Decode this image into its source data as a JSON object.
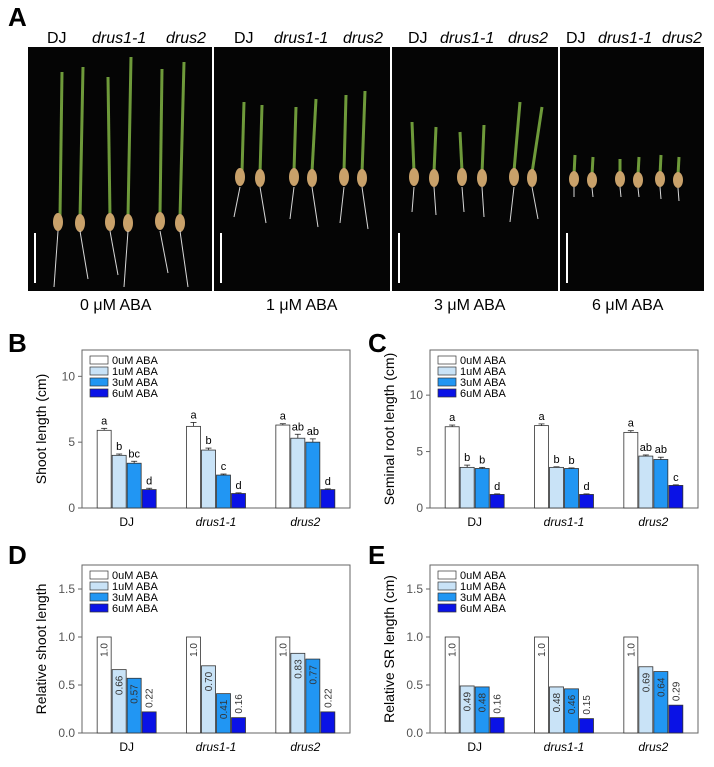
{
  "panels": {
    "a": "A",
    "b": "B",
    "c": "C",
    "d": "D",
    "e": "E"
  },
  "photo": {
    "groups": [
      {
        "genotypes": [
          "DJ",
          "drus1-1",
          "drus2"
        ],
        "treatment": "0 μM ABA"
      },
      {
        "genotypes": [
          "DJ",
          "drus1-1",
          "drus2"
        ],
        "treatment": "1 μM ABA"
      },
      {
        "genotypes": [
          "DJ",
          "drus1-1",
          "drus2"
        ],
        "treatment": "3 μM ABA"
      },
      {
        "genotypes": [
          "DJ",
          "drus1-1",
          "drus2"
        ],
        "treatment": "6 μM ABA"
      }
    ],
    "colors": {
      "background": "#050505",
      "leaf": "#6e9a3a",
      "seed": "#c9a16a",
      "root": "#d8d8d8",
      "scalebar": "#ffffff"
    }
  },
  "colors": {
    "c0": "#ffffff",
    "c1": "#c9e3f7",
    "c2": "#2196f3",
    "c3": "#0a12e6",
    "stroke": "#333333"
  },
  "chart_data": [
    {
      "id": "B",
      "type": "bar",
      "categories": [
        "DJ",
        "drus1-1",
        "drus2"
      ],
      "ylabel": "Shoot length (cm)",
      "ylim": [
        0,
        12
      ],
      "yticks": [
        0,
        5,
        10
      ],
      "grid": false,
      "legend": [
        "0uM ABA",
        "1uM ABA",
        "3uM ABA",
        "6uM ABA"
      ],
      "series": [
        {
          "name": "0uM ABA",
          "values": [
            5.9,
            6.2,
            6.3
          ],
          "err": [
            0.15,
            0.3,
            0.1
          ],
          "letters": [
            "a",
            "a",
            "a"
          ]
        },
        {
          "name": "1uM ABA",
          "values": [
            4.0,
            4.4,
            5.3
          ],
          "err": [
            0.1,
            0.15,
            0.3
          ],
          "letters": [
            "b",
            "b",
            "ab"
          ]
        },
        {
          "name": "3uM ABA",
          "values": [
            3.4,
            2.5,
            5.0
          ],
          "err": [
            0.15,
            0.08,
            0.25
          ],
          "letters": [
            "bc",
            "c",
            "ab"
          ]
        },
        {
          "name": "6uM ABA",
          "values": [
            1.4,
            1.1,
            1.4
          ],
          "err": [
            0.1,
            0.05,
            0.05
          ],
          "letters": [
            "d",
            "d",
            "d"
          ]
        }
      ]
    },
    {
      "id": "C",
      "type": "bar",
      "categories": [
        "DJ",
        "drus1-1",
        "drus2"
      ],
      "ylabel": "Seminal root length (cm)",
      "ylim": [
        0,
        14
      ],
      "yticks": [
        0,
        5,
        10
      ],
      "grid": false,
      "legend": [
        "0uM ABA",
        "1uM ABA",
        "3uM ABA",
        "6uM ABA"
      ],
      "series": [
        {
          "name": "0uM ABA",
          "values": [
            7.2,
            7.3,
            6.7
          ],
          "err": [
            0.15,
            0.15,
            0.15
          ],
          "letters": [
            "a",
            "a",
            "a"
          ]
        },
        {
          "name": "1uM ABA",
          "values": [
            3.6,
            3.6,
            4.6
          ],
          "err": [
            0.2,
            0.05,
            0.1
          ],
          "letters": [
            "b",
            "b",
            "ab"
          ]
        },
        {
          "name": "3uM ABA",
          "values": [
            3.5,
            3.5,
            4.3
          ],
          "err": [
            0.1,
            0.05,
            0.2
          ],
          "letters": [
            "b",
            "b",
            "ab"
          ]
        },
        {
          "name": "6uM ABA",
          "values": [
            1.2,
            1.2,
            2.0
          ],
          "err": [
            0.05,
            0.05,
            0.05
          ],
          "letters": [
            "d",
            "d",
            "c"
          ]
        }
      ]
    },
    {
      "id": "D",
      "type": "bar",
      "categories": [
        "DJ",
        "drus1-1",
        "drus2"
      ],
      "ylabel": "Relative shoot length",
      "ylim": [
        0,
        1.75
      ],
      "yticks": [
        0.0,
        0.5,
        1.0,
        1.5
      ],
      "grid": false,
      "legend": [
        "0uM ABA",
        "1uM ABA",
        "3uM ABA",
        "6uM ABA"
      ],
      "series": [
        {
          "name": "0uM ABA",
          "values": [
            1.0,
            1.0,
            1.0
          ],
          "labels": [
            "1.0",
            "1.0",
            "1.0"
          ]
        },
        {
          "name": "1uM ABA",
          "values": [
            0.66,
            0.7,
            0.83
          ],
          "labels": [
            "0.66",
            "0.70",
            "0.83"
          ]
        },
        {
          "name": "3uM ABA",
          "values": [
            0.57,
            0.41,
            0.77
          ],
          "labels": [
            "0.57",
            "0.41",
            "0.77"
          ]
        },
        {
          "name": "6uM ABA",
          "values": [
            0.22,
            0.16,
            0.22
          ],
          "labels": [
            "0.22",
            "0.16",
            "0.22"
          ]
        }
      ]
    },
    {
      "id": "E",
      "type": "bar",
      "categories": [
        "DJ",
        "drus1-1",
        "drus2"
      ],
      "ylabel": "Relative SR length (cm)",
      "ylim": [
        0,
        1.75
      ],
      "yticks": [
        0.0,
        0.5,
        1.0,
        1.5
      ],
      "grid": false,
      "legend": [
        "0uM ABA",
        "1uM ABA",
        "3uM ABA",
        "6uM ABA"
      ],
      "series": [
        {
          "name": "0uM ABA",
          "values": [
            1.0,
            1.0,
            1.0
          ],
          "labels": [
            "1.0",
            "1.0",
            "1.0"
          ]
        },
        {
          "name": "1uM ABA",
          "values": [
            0.49,
            0.48,
            0.69
          ],
          "labels": [
            "0.49",
            "0.48",
            "0.69"
          ]
        },
        {
          "name": "3uM ABA",
          "values": [
            0.48,
            0.46,
            0.64
          ],
          "labels": [
            "0.48",
            "0.46",
            "0.64"
          ]
        },
        {
          "name": "6uM ABA",
          "values": [
            0.16,
            0.15,
            0.29
          ],
          "labels": [
            "0.16",
            "0.15",
            "0.29"
          ]
        }
      ]
    }
  ]
}
